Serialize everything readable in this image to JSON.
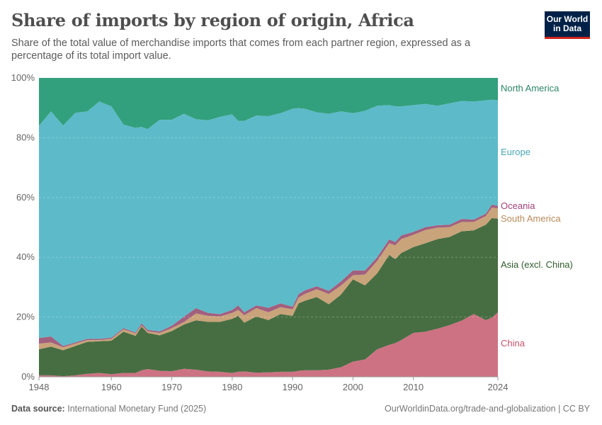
{
  "header": {
    "title": "Share of imports by region of origin, Africa",
    "subtitle": "Share of the total value of merchandise imports that comes from each partner region, expressed as a percentage of its total import value.",
    "logo_line1": "Our World",
    "logo_line2": "in Data"
  },
  "footer": {
    "source_label": "Data source:",
    "source": "International Monetary Fund (2025)",
    "right": "OurWorldinData.org/trade-and-globalization | CC BY"
  },
  "chart_data": {
    "type": "area",
    "stacked": true,
    "title": "Share of imports by region of origin, Africa",
    "ylim": [
      0,
      100
    ],
    "xlim": [
      1948,
      2024
    ],
    "y_ticks": [
      "0%",
      "20%",
      "40%",
      "60%",
      "80%",
      "100%"
    ],
    "x_ticks": [
      "1948",
      "1960",
      "1970",
      "1980",
      "1990",
      "2000",
      "2010",
      "2024"
    ],
    "grid": "horizontal dashed",
    "legend": "right (inline labels)",
    "x": [
      1948,
      1950,
      1952,
      1954,
      1956,
      1958,
      1960,
      1962,
      1964,
      1965,
      1966,
      1968,
      1970,
      1972,
      1974,
      1976,
      1978,
      1980,
      1981,
      1982,
      1984,
      1986,
      1988,
      1990,
      1991,
      1992,
      1994,
      1996,
      1998,
      2000,
      2002,
      2004,
      2006,
      2007,
      2008,
      2010,
      2012,
      2014,
      2016,
      2018,
      2020,
      2022,
      2023,
      2024
    ],
    "series": [
      {
        "name": "China",
        "color": "#cd7283",
        "label_color": "#c4506a",
        "values": [
          0.5,
          0.5,
          0.2,
          0.5,
          1.0,
          1.3,
          0.9,
          1.3,
          1.3,
          2.2,
          2.6,
          2.0,
          1.9,
          2.7,
          2.4,
          1.8,
          1.7,
          1.3,
          1.7,
          1.8,
          1.4,
          1.5,
          1.7,
          1.7,
          2.0,
          2.2,
          2.2,
          2.4,
          3.2,
          5.1,
          5.8,
          9.2,
          10.7,
          11.3,
          12.3,
          14.7,
          15.1,
          16.1,
          17.3,
          18.8,
          21.0,
          19.0,
          19.8,
          21.6
        ]
      },
      {
        "name": "Asia (excl. China)",
        "color": "#476e42",
        "label_color": "#2d5a2a",
        "values": [
          8.7,
          9.6,
          8.7,
          9.8,
          10.7,
          10.6,
          11.2,
          13.8,
          12.4,
          14.6,
          12.1,
          11.9,
          13.4,
          14.8,
          16.5,
          16.6,
          16.7,
          18.1,
          18.7,
          16.3,
          18.8,
          17.5,
          19.3,
          18.7,
          22.6,
          23.2,
          24.5,
          21.9,
          24.3,
          27.5,
          24.8,
          25.4,
          30.1,
          28.1,
          29.1,
          28.7,
          29.6,
          30.0,
          29.5,
          29.9,
          28.0,
          31.9,
          33.3,
          31.3
        ]
      },
      {
        "name": "South America",
        "color": "#c9a37a",
        "label_color": "#b88a5b",
        "values": [
          1.9,
          1.4,
          1.0,
          0.8,
          0.6,
          0.4,
          0.6,
          0.8,
          0.8,
          0.4,
          0.5,
          0.8,
          1.0,
          0.8,
          2.3,
          2.0,
          1.8,
          2.0,
          2.0,
          2.5,
          2.8,
          2.6,
          2.3,
          2.2,
          1.9,
          2.3,
          2.6,
          3.4,
          3.0,
          1.4,
          3.6,
          4.1,
          3.9,
          4.6,
          4.7,
          4.1,
          4.4,
          3.8,
          3.3,
          3.1,
          2.8,
          2.9,
          3.5,
          3.5
        ]
      },
      {
        "name": "Oceania",
        "color": "#a2607f",
        "label_color": "#a2407a",
        "values": [
          1.9,
          2.0,
          0.4,
          0.4,
          0.4,
          0.4,
          0.4,
          0.4,
          0.3,
          0.7,
          0.5,
          0.5,
          0.8,
          1.8,
          1.8,
          1.0,
          0.8,
          1.0,
          1.5,
          1.0,
          0.9,
          1.5,
          1.3,
          0.9,
          1.2,
          1.2,
          1.0,
          1.1,
          1.4,
          1.6,
          1.4,
          1.3,
          1.3,
          1.1,
          1.2,
          1.0,
          1.0,
          0.8,
          0.8,
          1.0,
          0.8,
          0.8,
          1.0,
          0.8
        ]
      },
      {
        "name": "Europe",
        "color": "#5dbac9",
        "label_color": "#4aa6b8",
        "values": [
          71.0,
          75.3,
          73.8,
          76.8,
          76.1,
          79.4,
          77.4,
          68.1,
          68.5,
          65.7,
          67.2,
          70.8,
          68.9,
          67.9,
          63.2,
          64.4,
          66.0,
          65.4,
          61.7,
          64.0,
          63.5,
          64.1,
          63.6,
          66.2,
          62.2,
          60.8,
          58.2,
          59.2,
          56.9,
          52.6,
          53.4,
          50.7,
          44.9,
          45.4,
          43.2,
          42.4,
          41.2,
          40.0,
          40.6,
          39.5,
          39.5,
          37.9,
          35.1,
          35.3
        ]
      },
      {
        "name": "North America",
        "color": "#33a07d",
        "label_color": "#2c8465",
        "values": [
          16.0,
          11.2,
          15.9,
          11.7,
          11.2,
          7.9,
          9.5,
          15.6,
          16.7,
          16.4,
          17.1,
          14.0,
          14.0,
          12.0,
          13.8,
          14.2,
          13.0,
          12.2,
          14.4,
          14.4,
          12.6,
          12.8,
          11.8,
          10.3,
          10.1,
          10.3,
          11.5,
          12.0,
          11.2,
          11.8,
          11.0,
          9.3,
          9.1,
          9.5,
          9.5,
          9.1,
          8.7,
          9.3,
          8.5,
          7.7,
          7.9,
          7.5,
          7.3,
          7.5
        ]
      }
    ]
  }
}
